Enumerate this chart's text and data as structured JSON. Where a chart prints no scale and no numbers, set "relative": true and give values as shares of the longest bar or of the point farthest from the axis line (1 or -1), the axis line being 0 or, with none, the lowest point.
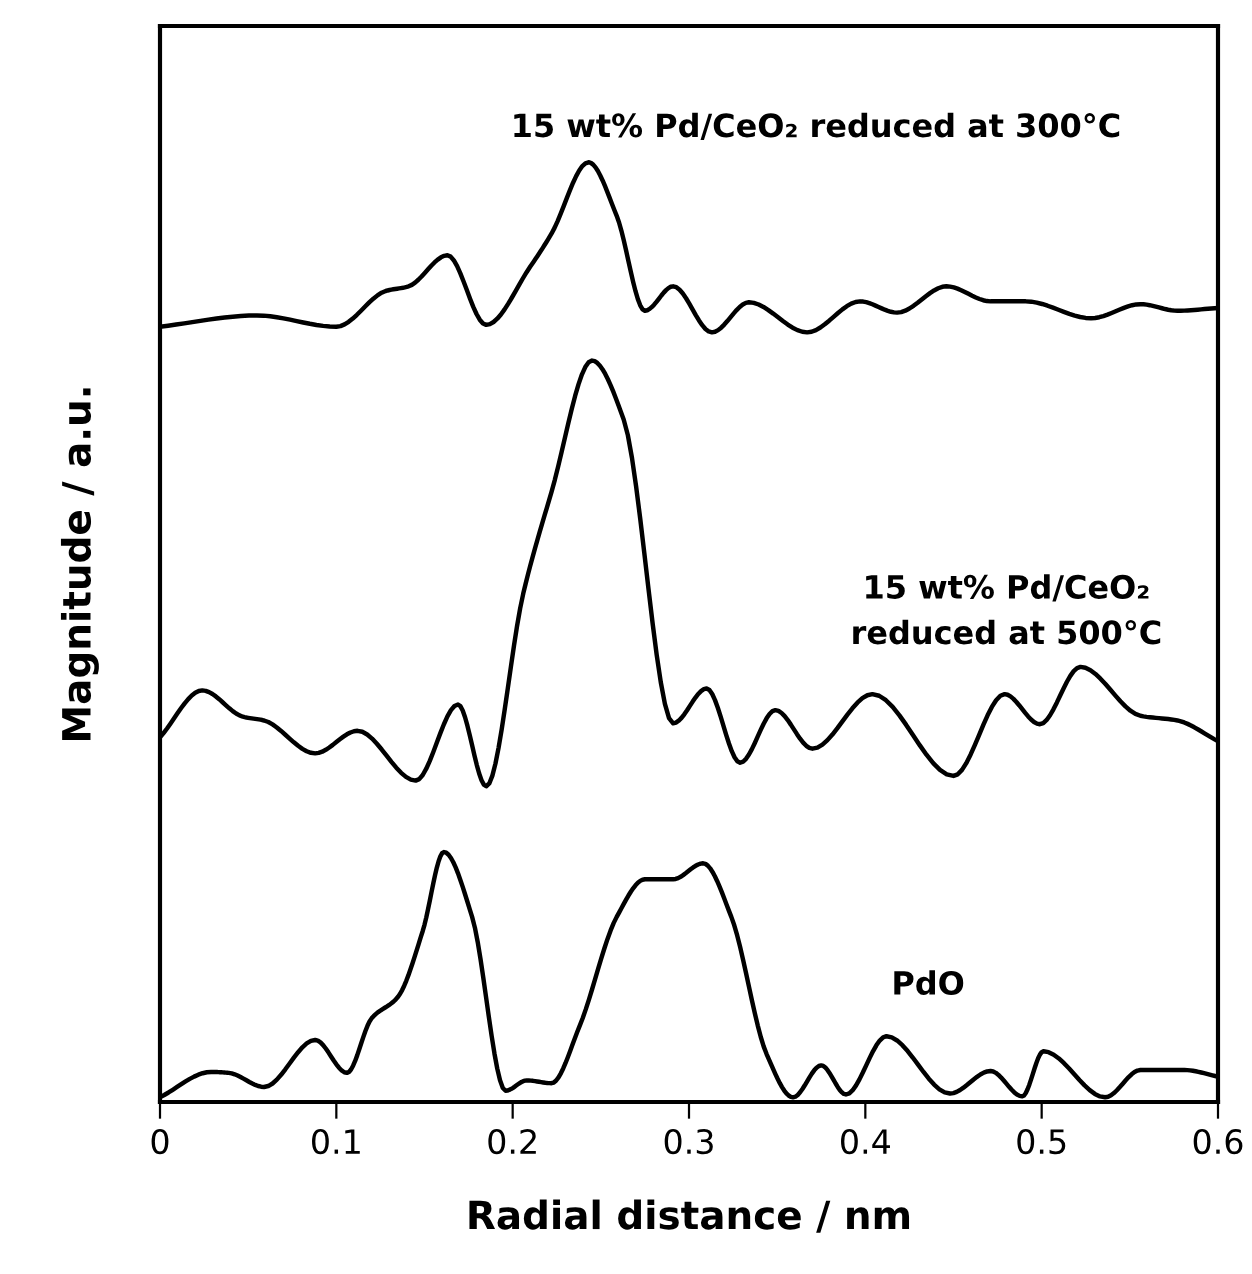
{
  "chart_data": {
    "type": "line",
    "relative": true,
    "xlabel": "Radial distance / nm",
    "ylabel": "Magnitude / a.u.",
    "xlim": [
      0,
      0.6
    ],
    "xticks": [
      0,
      0.1,
      0.2,
      0.3,
      0.4,
      0.5,
      0.6
    ],
    "grid": false,
    "legend": false,
    "marker": "none",
    "line_style": "solid",
    "series": [
      {
        "name": "15 wt% Pd/CeO₂ reduced at 300°C",
        "color": "#000000",
        "x": [
          0,
          0.055,
          0.1,
          0.128,
          0.141,
          0.163,
          0.185,
          0.21,
          0.222,
          0.243,
          0.259,
          0.275,
          0.291,
          0.313,
          0.334,
          0.367,
          0.397,
          0.418,
          0.446,
          0.471,
          0.491,
          0.528,
          0.556,
          0.577,
          0.6
        ],
        "values": [
          0.825,
          0.837,
          0.825,
          0.863,
          0.868,
          0.901,
          0.827,
          0.889,
          0.924,
          1.0,
          0.943,
          0.842,
          0.868,
          0.819,
          0.851,
          0.819,
          0.852,
          0.84,
          0.868,
          0.852,
          0.852,
          0.834,
          0.849,
          0.842,
          0.845
        ]
      },
      {
        "name": "15 wt% Pd/CeO₂\nreduced at 500°C",
        "color": "#000000",
        "x": [
          0,
          0.024,
          0.047,
          0.059,
          0.088,
          0.112,
          0.145,
          0.169,
          0.185,
          0.206,
          0.222,
          0.245,
          0.263,
          0.291,
          0.31,
          0.329,
          0.349,
          0.37,
          0.404,
          0.45,
          0.479,
          0.499,
          0.522,
          0.556,
          0.577,
          0.6
        ],
        "values": [
          0.388,
          0.438,
          0.41,
          0.406,
          0.371,
          0.395,
          0.342,
          0.423,
          0.336,
          0.541,
          0.649,
          0.789,
          0.726,
          0.403,
          0.44,
          0.361,
          0.417,
          0.376,
          0.434,
          0.347,
          0.434,
          0.402,
          0.463,
          0.411,
          0.406,
          0.384
        ]
      },
      {
        "name": "PdO",
        "color": "#000000",
        "x": [
          0,
          0.029,
          0.039,
          0.059,
          0.088,
          0.106,
          0.12,
          0.135,
          0.149,
          0.161,
          0.177,
          0.196,
          0.208,
          0.222,
          0.238,
          0.259,
          0.275,
          0.291,
          0.308,
          0.324,
          0.344,
          0.359,
          0.375,
          0.389,
          0.412,
          0.448,
          0.471,
          0.489,
          0.501,
          0.536,
          0.556,
          0.581,
          0.6
        ],
        "values": [
          0.005,
          0.032,
          0.031,
          0.016,
          0.066,
          0.031,
          0.089,
          0.112,
          0.182,
          0.266,
          0.197,
          0.012,
          0.023,
          0.02,
          0.081,
          0.197,
          0.237,
          0.237,
          0.254,
          0.197,
          0.051,
          0.005,
          0.039,
          0.008,
          0.07,
          0.009,
          0.033,
          0.006,
          0.054,
          0.005,
          0.034,
          0.034,
          0.027
        ]
      }
    ]
  }
}
